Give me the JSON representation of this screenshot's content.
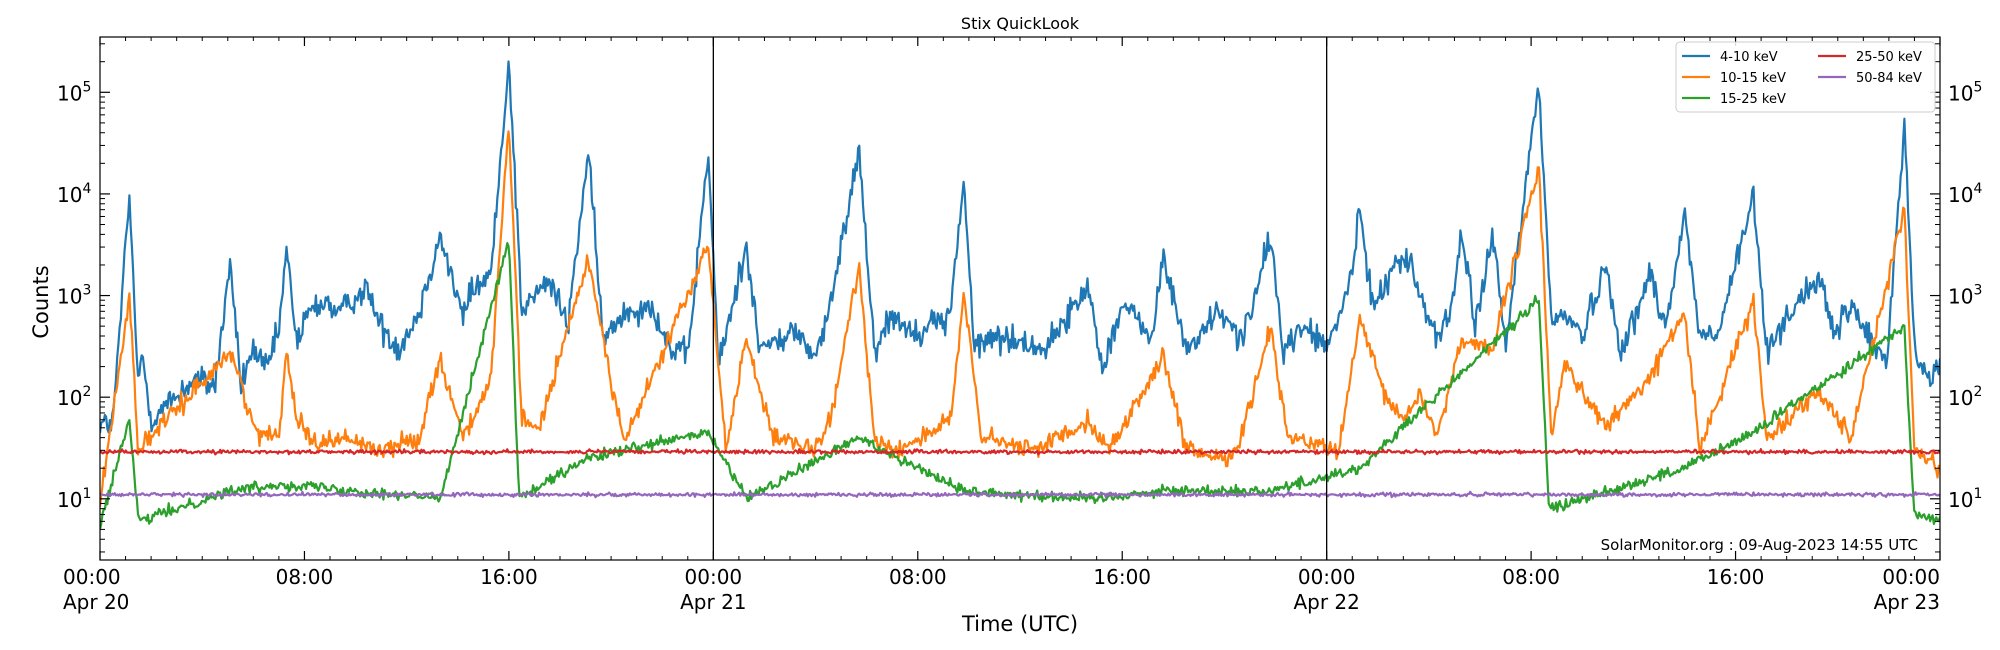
{
  "chart_data": {
    "type": "line",
    "title": "Stix QuickLook",
    "xlabel": "Time (UTC)",
    "ylabel": "Counts",
    "yscale": "log",
    "ylim": [
      2.5,
      350000
    ],
    "xlim_hours": [
      0,
      72
    ],
    "grid": false,
    "legend_position": "top-right",
    "credit": "SolarMonitor.org : 09-Aug-2023 14:55 UTC",
    "x_ticks": [
      {
        "hour": 0,
        "label_line1": "00:00",
        "label_line2": "Apr 20"
      },
      {
        "hour": 8,
        "label_line1": "08:00",
        "label_line2": ""
      },
      {
        "hour": 16,
        "label_line1": "16:00",
        "label_line2": ""
      },
      {
        "hour": 24,
        "label_line1": "00:00",
        "label_line2": "Apr 21"
      },
      {
        "hour": 32,
        "label_line1": "08:00",
        "label_line2": ""
      },
      {
        "hour": 40,
        "label_line1": "16:00",
        "label_line2": ""
      },
      {
        "hour": 48,
        "label_line1": "00:00",
        "label_line2": "Apr 22"
      },
      {
        "hour": 56,
        "label_line1": "08:00",
        "label_line2": ""
      },
      {
        "hour": 64,
        "label_line1": "16:00",
        "label_line2": ""
      },
      {
        "hour": 72,
        "label_line1": "00:00",
        "label_line2": "Apr 23"
      }
    ],
    "day_boundaries_hours": [
      24,
      48
    ],
    "y_ticks": [
      {
        "value": 10,
        "base": "10",
        "exp": "1"
      },
      {
        "value": 100,
        "base": "10",
        "exp": "2"
      },
      {
        "value": 1000,
        "base": "10",
        "exp": "3"
      },
      {
        "value": 10000,
        "base": "10",
        "exp": "4"
      },
      {
        "value": 100000,
        "base": "10",
        "exp": "5"
      }
    ],
    "series": [
      {
        "name": "4-10 keV",
        "color": "#1f77b4",
        "baseline": 50,
        "noise": 0.3,
        "points": [
          [
            0,
            55
          ],
          [
            0.5,
            55
          ],
          [
            1.15,
            9500
          ],
          [
            1.5,
            120
          ],
          [
            1.65,
            280
          ],
          [
            2,
            60
          ],
          [
            3.7,
            150
          ],
          [
            4.5,
            130
          ],
          [
            5.1,
            2200
          ],
          [
            5.5,
            130
          ],
          [
            6,
            300
          ],
          [
            6.5,
            180
          ],
          [
            7,
            450
          ],
          [
            7.3,
            2800
          ],
          [
            7.7,
            350
          ],
          [
            8.2,
            700
          ],
          [
            8.8,
            900
          ],
          [
            9.3,
            650
          ],
          [
            10.4,
            1200
          ],
          [
            11,
            500
          ],
          [
            11.7,
            300
          ],
          [
            12.5,
            700
          ],
          [
            13.3,
            4000
          ],
          [
            14.2,
            600
          ],
          [
            14.5,
            1100
          ],
          [
            15.3,
            1600
          ],
          [
            16.0,
            220000
          ],
          [
            16.5,
            700
          ],
          [
            17.0,
            1000
          ],
          [
            17.6,
            1400
          ],
          [
            18.3,
            500
          ],
          [
            19.1,
            26000
          ],
          [
            19.7,
            350
          ],
          [
            20.5,
            700
          ],
          [
            21.6,
            800
          ],
          [
            22.3,
            300
          ],
          [
            23.0,
            250
          ],
          [
            23.8,
            26000
          ],
          [
            24.2,
            200
          ],
          [
            25.3,
            3200
          ],
          [
            25.8,
            300
          ],
          [
            26.5,
            350
          ],
          [
            27.2,
            450
          ],
          [
            28.0,
            250
          ],
          [
            28.6,
            800
          ],
          [
            29.7,
            29000
          ],
          [
            30.3,
            300
          ],
          [
            31.0,
            650
          ],
          [
            32.0,
            400
          ],
          [
            32.4,
            600
          ],
          [
            33.0,
            500
          ],
          [
            33.3,
            800
          ],
          [
            33.8,
            14000
          ],
          [
            34.2,
            300
          ],
          [
            35.0,
            400
          ],
          [
            36.0,
            350
          ],
          [
            37.0,
            300
          ],
          [
            37.8,
            600
          ],
          [
            38.7,
            1200
          ],
          [
            39.2,
            200
          ],
          [
            40.0,
            800
          ],
          [
            41.2,
            400
          ],
          [
            41.6,
            2400
          ],
          [
            42.5,
            300
          ],
          [
            43.0,
            400
          ],
          [
            43.8,
            700
          ],
          [
            44.5,
            400
          ],
          [
            45.0,
            600
          ],
          [
            45.8,
            3800
          ],
          [
            46.3,
            300
          ],
          [
            47.2,
            500
          ],
          [
            48.0,
            300
          ],
          [
            48.5,
            600
          ],
          [
            49.0,
            1800
          ],
          [
            49.3,
            6500
          ],
          [
            49.8,
            800
          ],
          [
            50.2,
            1200
          ],
          [
            50.7,
            2200
          ],
          [
            51.3,
            2000
          ],
          [
            51.8,
            800
          ],
          [
            52.3,
            400
          ],
          [
            52.8,
            600
          ],
          [
            53.3,
            4000
          ],
          [
            53.8,
            500
          ],
          [
            54.5,
            4000
          ],
          [
            55.0,
            300
          ],
          [
            56.3,
            130000
          ],
          [
            56.8,
            500
          ],
          [
            57.3,
            700
          ],
          [
            58.0,
            400
          ],
          [
            58.9,
            2000
          ],
          [
            59.5,
            300
          ],
          [
            60.3,
            800
          ],
          [
            60.6,
            1800
          ],
          [
            61.3,
            500
          ],
          [
            62.0,
            6500
          ],
          [
            62.6,
            400
          ],
          [
            63.3,
            400
          ],
          [
            64.7,
            9500
          ],
          [
            65.2,
            300
          ],
          [
            66.3,
            800
          ],
          [
            67.3,
            1500
          ],
          [
            67.8,
            400
          ],
          [
            68.5,
            800
          ],
          [
            69.5,
            300
          ],
          [
            69.9,
            200
          ],
          [
            70.6,
            52000
          ],
          [
            71.0,
            300
          ],
          [
            71.5,
            150
          ],
          [
            72,
            200
          ]
        ]
      },
      {
        "name": "10-15 keV",
        "color": "#ff7f0e",
        "baseline": 9,
        "noise": 0.2,
        "points": [
          [
            0,
            9
          ],
          [
            1.15,
            1000
          ],
          [
            1.5,
            30
          ],
          [
            5.1,
            280
          ],
          [
            6.2,
            40
          ],
          [
            7.0,
            45
          ],
          [
            7.3,
            300
          ],
          [
            7.7,
            60
          ],
          [
            8.5,
            35
          ],
          [
            9.5,
            40
          ],
          [
            11,
            30
          ],
          [
            12.5,
            40
          ],
          [
            13.3,
            250
          ],
          [
            14.2,
            40
          ],
          [
            15.3,
            150
          ],
          [
            16.0,
            48000
          ],
          [
            16.5,
            60
          ],
          [
            17.2,
            50
          ],
          [
            19.1,
            2300
          ],
          [
            20.5,
            35
          ],
          [
            23.8,
            3000
          ],
          [
            24.5,
            30
          ],
          [
            25.3,
            400
          ],
          [
            26.3,
            40
          ],
          [
            28.0,
            30
          ],
          [
            28.6,
            60
          ],
          [
            29.7,
            2000
          ],
          [
            30.3,
            40
          ],
          [
            31.2,
            30
          ],
          [
            33.3,
            60
          ],
          [
            33.8,
            1000
          ],
          [
            34.5,
            40
          ],
          [
            36.5,
            30
          ],
          [
            38.7,
            60
          ],
          [
            39.5,
            30
          ],
          [
            41.6,
            250
          ],
          [
            42.5,
            30
          ],
          [
            44.0,
            25
          ],
          [
            44.6,
            35
          ],
          [
            45.8,
            500
          ],
          [
            46.5,
            40
          ],
          [
            48.5,
            30
          ],
          [
            49.3,
            600
          ],
          [
            50.2,
            110
          ],
          [
            51.0,
            60
          ],
          [
            51.7,
            110
          ],
          [
            52.3,
            40
          ],
          [
            53.3,
            380
          ],
          [
            54.5,
            300
          ],
          [
            56.3,
            18000
          ],
          [
            56.8,
            40
          ],
          [
            57.3,
            220
          ],
          [
            58.9,
            50
          ],
          [
            60.6,
            150
          ],
          [
            62.0,
            700
          ],
          [
            62.6,
            30
          ],
          [
            64.7,
            900
          ],
          [
            65.2,
            40
          ],
          [
            67.3,
            120
          ],
          [
            68.5,
            40
          ],
          [
            70.6,
            7000
          ],
          [
            71.0,
            30
          ],
          [
            72,
            20
          ]
        ]
      },
      {
        "name": "15-25 keV",
        "color": "#2ca02c",
        "baseline": 5.5,
        "noise": 0.12,
        "points": [
          [
            0,
            5.5
          ],
          [
            1.15,
            60
          ],
          [
            1.5,
            6
          ],
          [
            5.1,
            12
          ],
          [
            7.3,
            14
          ],
          [
            13.3,
            10
          ],
          [
            16.0,
            3500
          ],
          [
            16.4,
            10
          ],
          [
            19.1,
            25
          ],
          [
            23.8,
            45
          ],
          [
            25.3,
            10
          ],
          [
            29.7,
            40
          ],
          [
            33.8,
            12
          ],
          [
            38.7,
            10
          ],
          [
            41.6,
            12
          ],
          [
            45.8,
            12
          ],
          [
            49.3,
            20
          ],
          [
            56.3,
            900
          ],
          [
            56.7,
            8
          ],
          [
            62.0,
            20
          ],
          [
            64.7,
            45
          ],
          [
            70.6,
            500
          ],
          [
            71.0,
            7
          ],
          [
            72,
            6
          ]
        ]
      },
      {
        "name": "25-50 keV",
        "color": "#d62728",
        "baseline": 29,
        "noise": 0.04,
        "points": [
          [
            0,
            29
          ],
          [
            72,
            29
          ]
        ]
      },
      {
        "name": "50-84 keV",
        "color": "#9467bd",
        "baseline": 11,
        "noise": 0.04,
        "points": [
          [
            0,
            11
          ],
          [
            72,
            11
          ]
        ]
      }
    ]
  }
}
